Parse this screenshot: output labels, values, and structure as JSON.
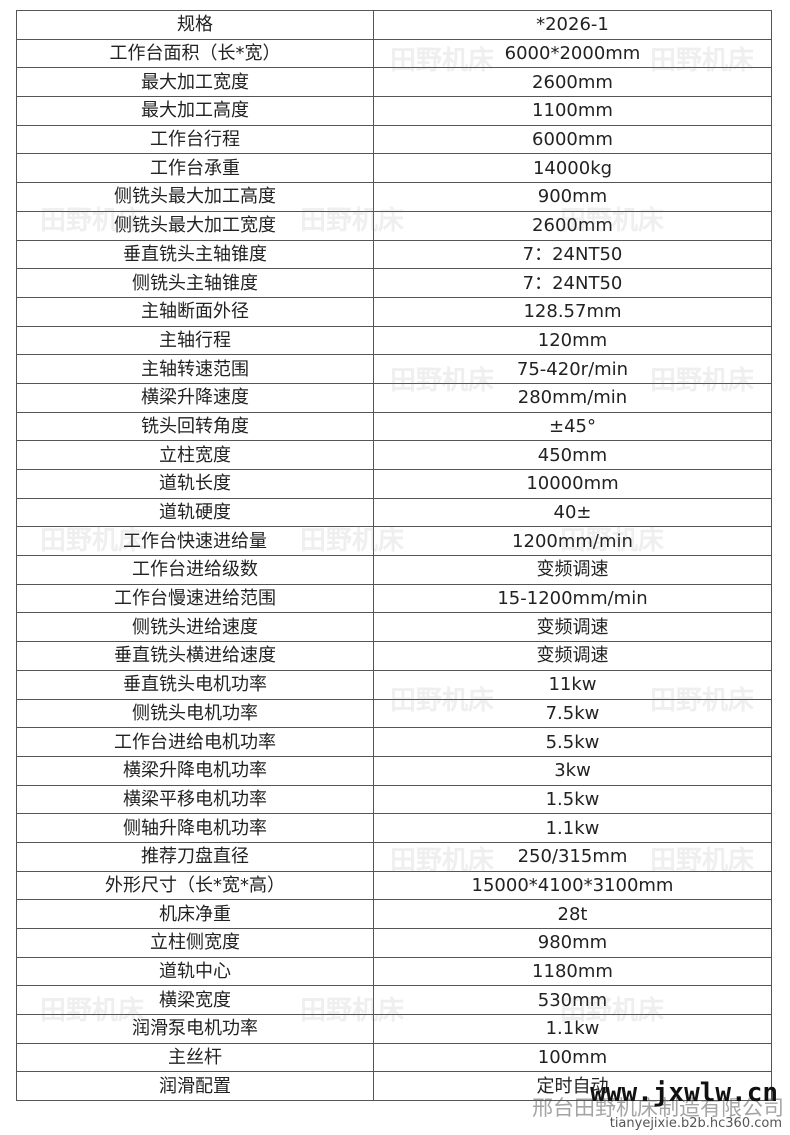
{
  "table": {
    "rows": [
      [
        "规格",
        "*2026-1"
      ],
      [
        "工作台面积（长*宽）",
        "6000*2000mm"
      ],
      [
        "最大加工宽度",
        "2600mm"
      ],
      [
        "最大加工高度",
        "1100mm"
      ],
      [
        "工作台行程",
        "6000mm"
      ],
      [
        "工作台承重",
        "14000kg"
      ],
      [
        "侧铣头最大加工高度",
        "900mm"
      ],
      [
        "侧铣头最大加工宽度",
        "2600mm"
      ],
      [
        "垂直铣头主轴锥度",
        "7：24NT50"
      ],
      [
        "侧铣头主轴锥度",
        "7：24NT50"
      ],
      [
        "主轴断面外径",
        "128.57mm"
      ],
      [
        "主轴行程",
        "120mm"
      ],
      [
        "主轴转速范围",
        "75-420r/min"
      ],
      [
        "横梁升降速度",
        "280mm/min"
      ],
      [
        "铣头回转角度",
        "±45°"
      ],
      [
        "立柱宽度",
        "450mm"
      ],
      [
        "道轨长度",
        "10000mm"
      ],
      [
        "道轨硬度",
        "40±"
      ],
      [
        "工作台快速进给量",
        "1200mm/min"
      ],
      [
        "工作台进给级数",
        "变频调速"
      ],
      [
        "工作台慢速进给范围",
        "15-1200mm/min"
      ],
      [
        "侧铣头进给速度",
        "变频调速"
      ],
      [
        "垂直铣头横进给速度",
        "变频调速"
      ],
      [
        "垂直铣头电机功率",
        "11kw"
      ],
      [
        "侧铣头电机功率",
        "7.5kw"
      ],
      [
        "工作台进给电机功率",
        "5.5kw"
      ],
      [
        "横梁升降电机功率",
        "3kw"
      ],
      [
        "横梁平移电机功率",
        "1.5kw"
      ],
      [
        "侧轴升降电机功率",
        "1.1kw"
      ],
      [
        "推荐刀盘直径",
        "250/315mm"
      ],
      [
        "外形尺寸（长*宽*高）",
        "15000*4100*3100mm"
      ],
      [
        "机床净重",
        "28t"
      ],
      [
        "立柱侧宽度",
        "980mm"
      ],
      [
        "道轨中心",
        "1180mm"
      ],
      [
        "横梁宽度",
        "530mm"
      ],
      [
        "润滑泵电机功率",
        "1.1kw"
      ],
      [
        "主丝杆",
        "100mm"
      ],
      [
        "润滑配置",
        "定时自动"
      ]
    ]
  },
  "watermark": "田野机床",
  "footer": {
    "site": "www.jxwlw.cn",
    "company": "邢台田野机床制造有限公司",
    "url": "tianyejixie.b2b.hc360.com"
  }
}
